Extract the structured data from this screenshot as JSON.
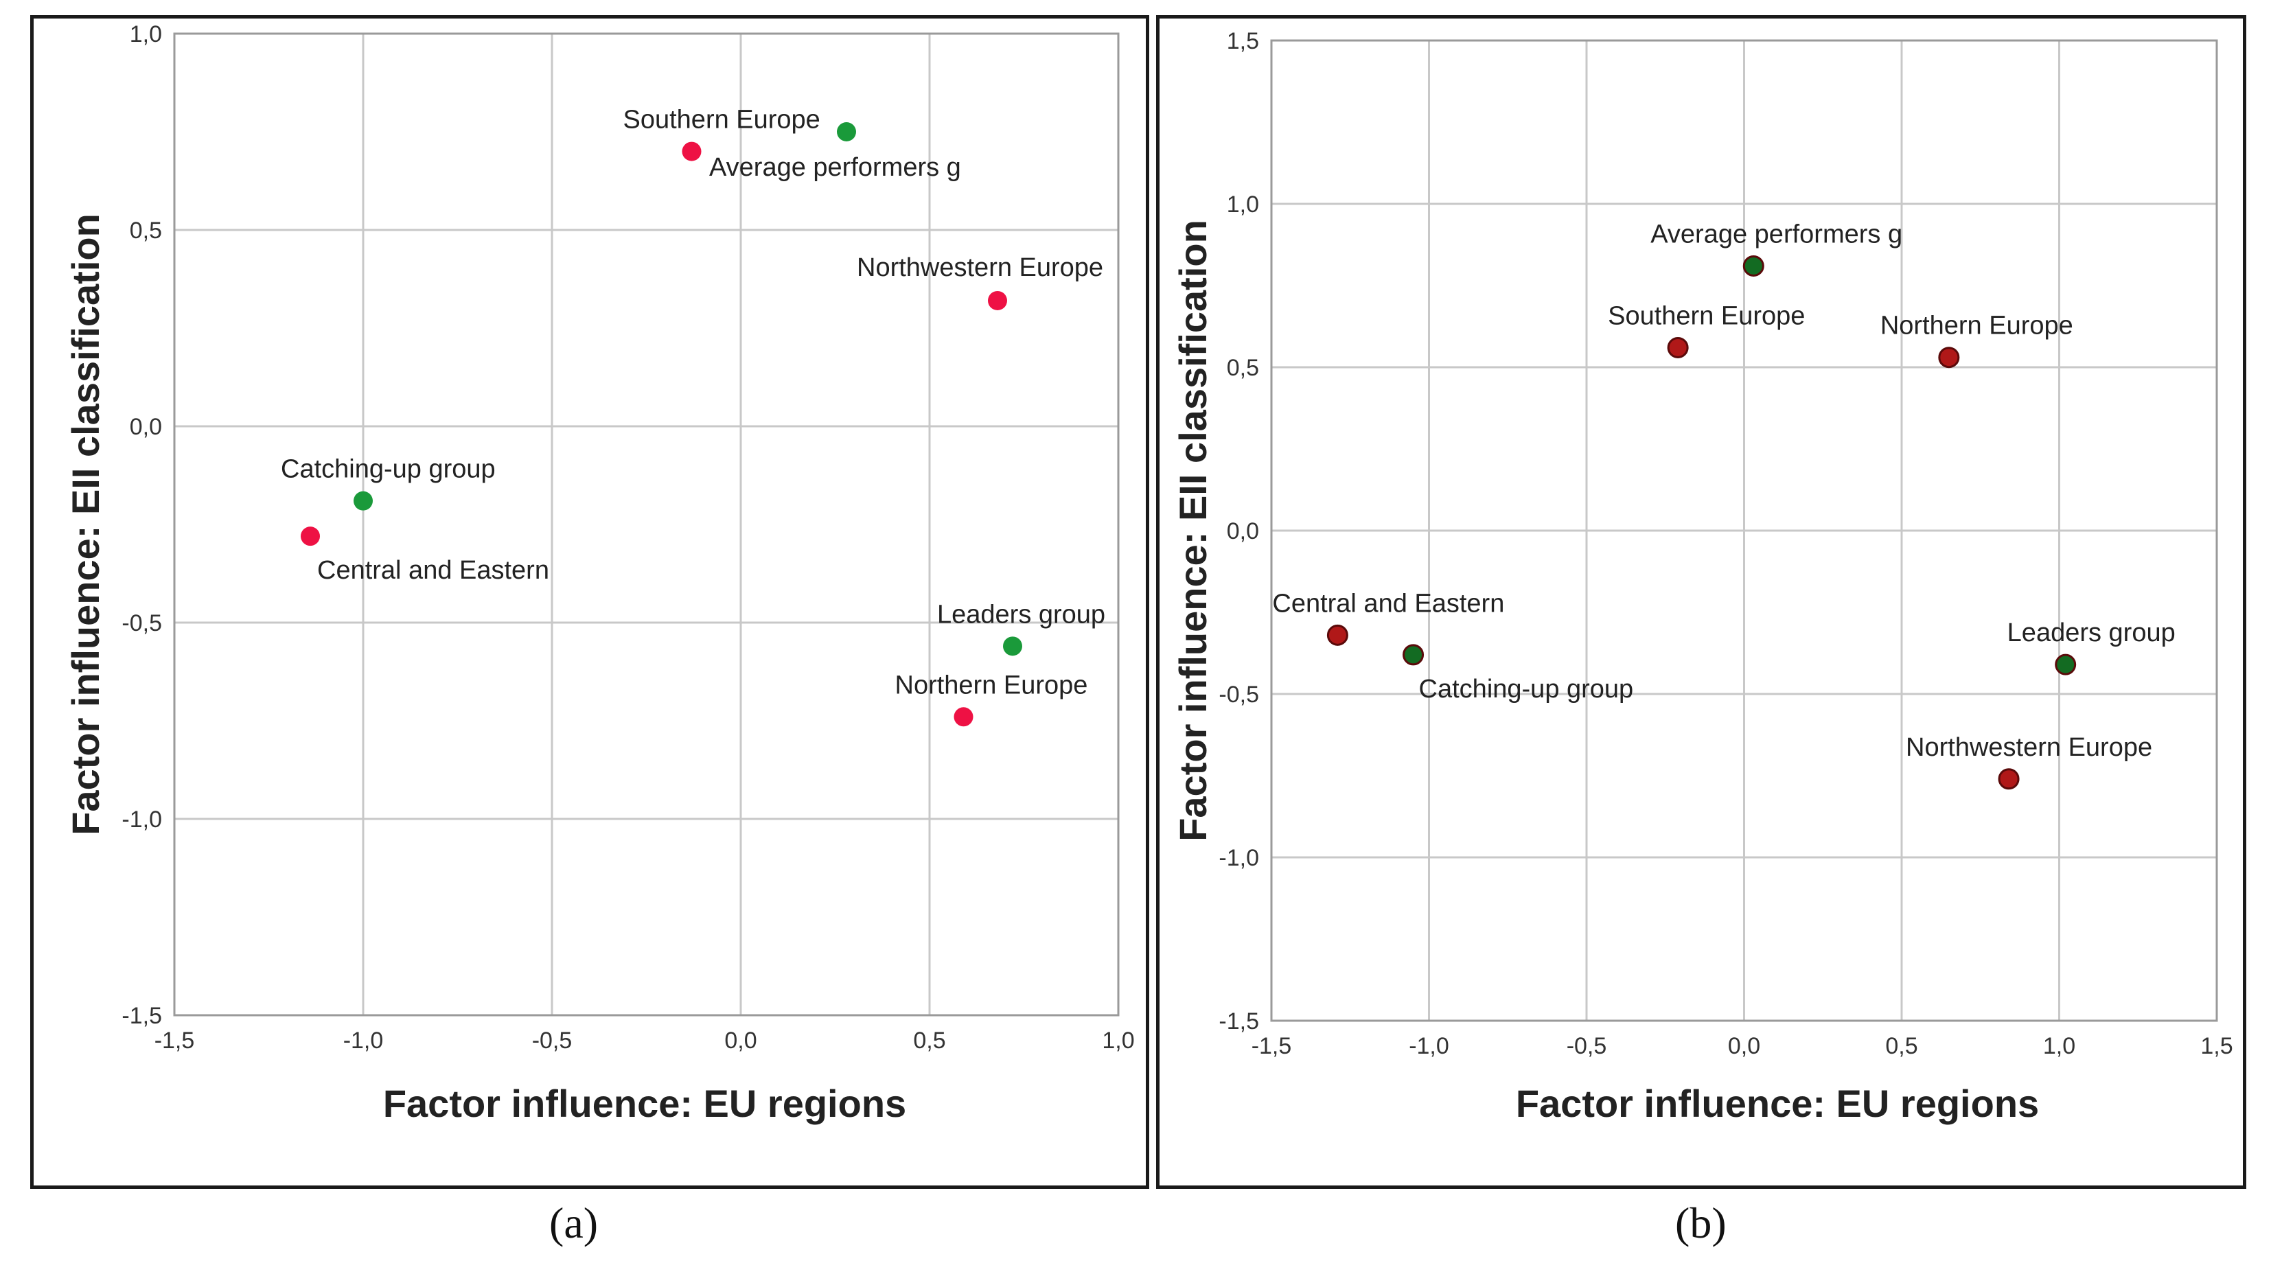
{
  "chart_data": [
    {
      "type": "scatter",
      "panel_label": "(a)",
      "xlabel": "Factor influence: EU regions",
      "ylabel": "Factor influence: EII classification",
      "xlim": [
        -1.5,
        1.0
      ],
      "ylim": [
        -1.5,
        1.0
      ],
      "xticks": [
        -1.5,
        -1.0,
        -0.5,
        0.0,
        0.5,
        1.0
      ],
      "yticks": [
        -1.5,
        -1.0,
        -0.5,
        0.0,
        0.5,
        1.0
      ],
      "xtick_labels": [
        "-1,5",
        "-1,0",
        "-0,5",
        "0,0",
        "0,5",
        "1,0"
      ],
      "ytick_labels": [
        "-1,5",
        "-1,0",
        "-0,5",
        "0,0",
        "0,5",
        "1,0"
      ],
      "grid": true,
      "series": [
        {
          "name": "EU regions",
          "color": "#ee1144",
          "points": [
            {
              "label": "Southern Europe",
              "x": -0.13,
              "y": 0.7
            },
            {
              "label": "Northwestern Europe",
              "x": 0.68,
              "y": 0.32
            },
            {
              "label": "Central and Eastern",
              "x": -1.14,
              "y": -0.28
            },
            {
              "label": "Northern Europe",
              "x": 0.59,
              "y": -0.74
            }
          ]
        },
        {
          "name": "EII classification",
          "color": "#1a9a3a",
          "points": [
            {
              "label": "Average performers g",
              "x": 0.28,
              "y": 0.75
            },
            {
              "label": "Catching-up group",
              "x": -1.0,
              "y": -0.19
            },
            {
              "label": "Leaders group",
              "x": 0.72,
              "y": -0.56
            }
          ]
        }
      ]
    },
    {
      "type": "scatter",
      "panel_label": "(b)",
      "xlabel": "Factor influence: EU regions",
      "ylabel": "Factor influence: EII classification",
      "xlim": [
        -1.5,
        1.5
      ],
      "ylim": [
        -1.5,
        1.5
      ],
      "xticks": [
        -1.5,
        -1.0,
        -0.5,
        0.0,
        0.5,
        1.0,
        1.5
      ],
      "yticks": [
        -1.5,
        -1.0,
        -0.5,
        0.0,
        0.5,
        1.0,
        1.5
      ],
      "xtick_labels": [
        "-1,5",
        "-1,0",
        "-0,5",
        "0,0",
        "0,5",
        "1,0",
        "1,5"
      ],
      "ytick_labels": [
        "-1,5",
        "-1,0",
        "-0,5",
        "0,0",
        "0,5",
        "1,0",
        "1,5"
      ],
      "grid": true,
      "series": [
        {
          "name": "EU regions",
          "color": "#b01818",
          "points": [
            {
              "label": "Southern Europe",
              "x": -0.21,
              "y": 0.56
            },
            {
              "label": "Northern Europe",
              "x": 0.65,
              "y": 0.53
            },
            {
              "label": "Central and Eastern",
              "x": -1.29,
              "y": -0.32
            },
            {
              "label": "Northwestern Europe",
              "x": 0.84,
              "y": -0.76
            }
          ]
        },
        {
          "name": "EII classification",
          "color": "#136b22",
          "points": [
            {
              "label": "Average performers g",
              "x": 0.03,
              "y": 0.81
            },
            {
              "label": "Catching-up group",
              "x": -1.05,
              "y": -0.38
            },
            {
              "label": "Leaders group",
              "x": 1.02,
              "y": -0.41
            }
          ]
        }
      ]
    }
  ]
}
